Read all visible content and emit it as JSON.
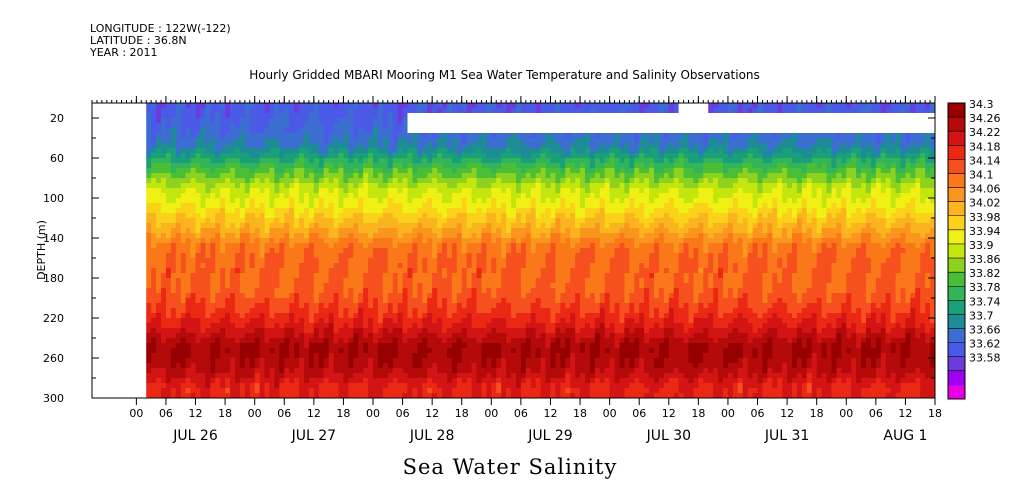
{
  "header": {
    "longitude": "LONGITUDE : 122W(-122)",
    "latitude": "LATITUDE : 36.8N",
    "year": "YEAR : 2011"
  },
  "chart_data": {
    "type": "heatmap",
    "title": "Hourly Gridded MBARI Mooring M1 Sea Water Temperature and Salinity Observations",
    "xlabel": "Sea Water Salinity",
    "ylabel": "DEPTH (m)",
    "y_ticks": [
      20,
      60,
      100,
      140,
      180,
      220,
      260,
      300
    ],
    "ylim": [
      300,
      5
    ],
    "x_hour_labels": [
      "00",
      "06",
      "12",
      "18",
      "00",
      "06",
      "12",
      "18",
      "00",
      "06",
      "12",
      "18",
      "00",
      "06",
      "12",
      "18",
      "00",
      "06",
      "12",
      "18",
      "00",
      "06",
      "12",
      "18",
      "00",
      "06",
      "12",
      "18"
    ],
    "x_day_labels": [
      "JUL 26",
      "JUL 27",
      "JUL 28",
      "JUL 29",
      "JUL 30",
      "JUL 31",
      "AUG  1"
    ],
    "xlim_hours": [
      -9,
      162
    ],
    "data_start_hour": 2,
    "colorbar_levels": [
      34.3,
      34.26,
      34.22,
      34.18,
      34.14,
      34.1,
      34.06,
      34.02,
      33.98,
      33.94,
      33.9,
      33.86,
      33.82,
      33.78,
      33.74,
      33.7,
      33.66,
      33.62,
      33.58
    ],
    "depth_profile": [
      {
        "depth": 10,
        "value": 33.7
      },
      {
        "depth": 30,
        "value": 33.72
      },
      {
        "depth": 50,
        "value": 33.76
      },
      {
        "depth": 70,
        "value": 33.86
      },
      {
        "depth": 90,
        "value": 33.94
      },
      {
        "depth": 110,
        "value": 33.99
      },
      {
        "depth": 130,
        "value": 34.05
      },
      {
        "depth": 150,
        "value": 34.12
      },
      {
        "depth": 170,
        "value": 34.13
      },
      {
        "depth": 190,
        "value": 34.13
      },
      {
        "depth": 210,
        "value": 34.16
      },
      {
        "depth": 230,
        "value": 34.21
      },
      {
        "depth": 250,
        "value": 34.27
      },
      {
        "depth": 270,
        "value": 34.25
      },
      {
        "depth": 290,
        "value": 34.19
      }
    ],
    "missing_data": [
      {
        "hour_start": 55,
        "hour_end": 162,
        "depth_top": 15,
        "depth_bottom": 35
      },
      {
        "hour_start": 110,
        "hour_end": 116,
        "depth_top": 5,
        "depth_bottom": 15
      }
    ],
    "colors": [
      "#e600e6",
      "#a000f0",
      "#6a3cdc",
      "#4a5ae6",
      "#3c6ed2",
      "#1e8c96",
      "#19a078",
      "#32b45a",
      "#4bbe37",
      "#8cd21e",
      "#c3e60f",
      "#f0f014",
      "#fad219",
      "#fab41e",
      "#fa961e",
      "#fa7819",
      "#f5501e",
      "#eb2814",
      "#d21414",
      "#b40a0a",
      "#960000"
    ]
  }
}
